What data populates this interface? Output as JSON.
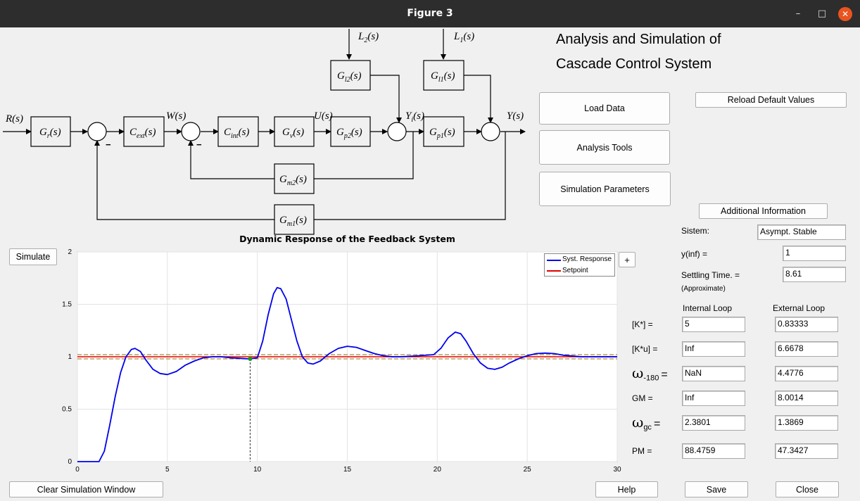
{
  "window": {
    "title": "Figure 3"
  },
  "header": {
    "line1": "Analysis and Simulation of",
    "line2": "Cascade Control System"
  },
  "diagram": {
    "signals": {
      "R": "R(s)",
      "W": "W(s)",
      "U": "U(s)",
      "Yi": "Y",
      "Yi_sub": "i",
      "Yi_rest": "(s)",
      "Y": "Y(s)",
      "L2": "L",
      "L2_sub": "2",
      "L2_rest": "(s)",
      "L1": "L",
      "L1_sub": "1",
      "L1_rest": "(s)"
    },
    "blocks": {
      "Gr": {
        "main": "G",
        "sub": "r",
        "rest": "(s)"
      },
      "Cext": {
        "main": "C",
        "sub": "ext",
        "rest": "(s)"
      },
      "Cint": {
        "main": "C",
        "sub": "int",
        "rest": "(s)"
      },
      "Gv": {
        "main": "G",
        "sub": "v",
        "rest": "(s)"
      },
      "Gp2": {
        "main": "G",
        "sub": "p2",
        "rest": "(s)"
      },
      "Gp1": {
        "main": "G",
        "sub": "p1",
        "rest": "(s)"
      },
      "Gl2": {
        "main": "G",
        "sub": "l2",
        "rest": "(s)"
      },
      "Gl1": {
        "main": "G",
        "sub": "l1",
        "rest": "(s)"
      },
      "Gm2": {
        "main": "G",
        "sub": "m2",
        "rest": "(s)"
      },
      "Gm1": {
        "main": "G",
        "sub": "m1",
        "rest": "(s)"
      }
    },
    "minus": "−"
  },
  "buttons": {
    "load": "Load Data",
    "analysis": "Analysis Tools",
    "simparams": "Simulation Parameters",
    "reload": "Reload Default Values",
    "additional": "Additional Information",
    "simulate": "Simulate",
    "clear": "Clear Simulation Window",
    "help": "Help",
    "save": "Save",
    "close": "Close",
    "legend_plus": "+"
  },
  "info": {
    "sistem_label": "Sistem:",
    "sistem_value": "Asympt. Stable",
    "yinf_label": "y(inf) =",
    "yinf_value": "1",
    "settling_label": "Settling Time. =",
    "settling_value": "8.61",
    "approx": "(Approximate)",
    "col_internal": "Internal Loop",
    "col_external": "External Loop",
    "rows": [
      {
        "label": "[K*] =",
        "internal": "5",
        "external": "0.83333"
      },
      {
        "label": "[K*u] =",
        "internal": "Inf",
        "external": "6.6678"
      },
      {
        "label": "ω",
        "label_sub": "-180",
        "label_eq": "=",
        "internal": "NaN",
        "external": "4.4776"
      },
      {
        "label": "GM =",
        "internal": "Inf",
        "external": "8.0014"
      },
      {
        "label": "ω",
        "label_sub": "gc",
        "label_eq": "=",
        "internal": "2.3801",
        "external": "1.3869"
      },
      {
        "label": "PM  =",
        "internal": "88.4759",
        "external": "47.3427"
      }
    ]
  },
  "chart_data": {
    "type": "line",
    "title": "Dynamic Response of the Feedback System",
    "xlim": [
      0,
      30
    ],
    "ylim": [
      0,
      2
    ],
    "xticks": [
      0,
      5,
      10,
      15,
      20,
      25,
      30
    ],
    "yticks": [
      0,
      0.5,
      1,
      1.5,
      2
    ],
    "grid": true,
    "legend_position": "top-right",
    "series": [
      {
        "name": "Syst. Response",
        "color": "#0000ee",
        "x": [
          0,
          1.2,
          1.5,
          1.8,
          2.1,
          2.4,
          2.7,
          3.0,
          3.2,
          3.5,
          3.8,
          4.2,
          4.6,
          5.0,
          5.5,
          6.0,
          6.5,
          7.0,
          7.5,
          8.0,
          8.5,
          9.0,
          9.5,
          9.8,
          10.0,
          10.3,
          10.6,
          10.9,
          11.1,
          11.3,
          11.6,
          11.9,
          12.2,
          12.5,
          12.8,
          13.1,
          13.5,
          14.0,
          14.5,
          15.0,
          15.5,
          16.0,
          16.5,
          17.0,
          17.5,
          18.0,
          19.0,
          19.8,
          20.2,
          20.6,
          21.0,
          21.3,
          21.6,
          22.0,
          22.4,
          22.8,
          23.2,
          23.6,
          24.0,
          24.5,
          25.0,
          25.5,
          26.0,
          26.5,
          27.0,
          28.0,
          29.0,
          30.0
        ],
        "y": [
          0,
          0,
          0.1,
          0.35,
          0.62,
          0.85,
          1.0,
          1.07,
          1.08,
          1.05,
          0.97,
          0.88,
          0.84,
          0.83,
          0.86,
          0.92,
          0.96,
          0.99,
          1.0,
          1.0,
          0.99,
          0.985,
          0.98,
          0.985,
          0.99,
          1.15,
          1.4,
          1.6,
          1.66,
          1.65,
          1.55,
          1.35,
          1.15,
          1.0,
          0.94,
          0.93,
          0.96,
          1.03,
          1.08,
          1.1,
          1.09,
          1.06,
          1.03,
          1.01,
          1.0,
          1.0,
          1.01,
          1.02,
          1.08,
          1.18,
          1.235,
          1.22,
          1.15,
          1.03,
          0.94,
          0.89,
          0.88,
          0.9,
          0.94,
          0.98,
          1.01,
          1.03,
          1.035,
          1.03,
          1.015,
          1.0,
          1.0,
          1.0
        ]
      },
      {
        "name": "Setpoint",
        "color": "#e00000",
        "x": [
          0,
          30
        ],
        "y": [
          1,
          1
        ]
      }
    ],
    "settling_band": [
      0.98,
      1.02
    ],
    "settling_marker": {
      "x": 9.6,
      "y": 0.98
    }
  }
}
